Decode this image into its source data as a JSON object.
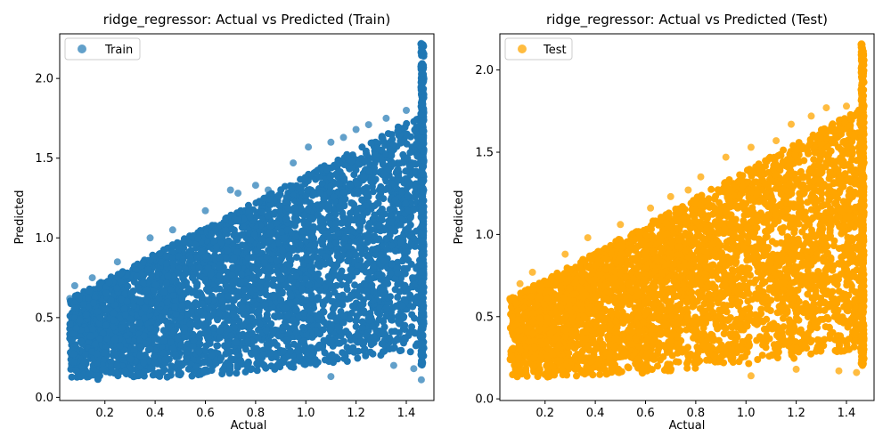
{
  "chart_data": [
    {
      "type": "scatter",
      "title": "ridge_regressor: Actual vs Predicted (Train)",
      "xlabel": "Actual",
      "ylabel": "Predicted",
      "xlim": [
        0.02,
        1.51
      ],
      "ylim": [
        -0.02,
        2.28
      ],
      "xticks": [
        0.2,
        0.4,
        0.6,
        0.8,
        1.0,
        1.2,
        1.4
      ],
      "xtick_labels": [
        "0.2",
        "0.4",
        "0.6",
        "0.8",
        "1.0",
        "1.2",
        "1.4"
      ],
      "yticks": [
        0.0,
        0.5,
        1.0,
        1.5,
        2.0
      ],
      "ytick_labels": [
        "0.0",
        "0.5",
        "1.0",
        "1.5",
        "2.0"
      ],
      "grid": false,
      "legend_position": "top-left",
      "series": [
        {
          "name": "Train",
          "color": "#1f77b4",
          "alpha": 0.7,
          "x_range": [
            0.06,
            1.47
          ],
          "y_min_range": [
            0.11,
            0.42
          ],
          "y_max_range": [
            0.62,
            2.22
          ],
          "points": [
            [
              0.06,
              0.62
            ],
            [
              0.08,
              0.7
            ],
            [
              0.15,
              0.75
            ],
            [
              0.25,
              0.85
            ],
            [
              0.38,
              1.0
            ],
            [
              0.47,
              1.05
            ],
            [
              0.6,
              1.17
            ],
            [
              0.7,
              1.3
            ],
            [
              0.73,
              1.28
            ],
            [
              0.8,
              1.33
            ],
            [
              0.85,
              1.3
            ],
            [
              0.95,
              1.47
            ],
            [
              1.01,
              1.57
            ],
            [
              1.1,
              1.6
            ],
            [
              1.15,
              1.63
            ],
            [
              1.2,
              1.68
            ],
            [
              1.25,
              1.71
            ],
            [
              1.32,
              1.75
            ],
            [
              1.4,
              1.8
            ],
            [
              1.46,
              2.22
            ],
            [
              1.43,
              0.18
            ],
            [
              1.46,
              0.11
            ],
            [
              1.1,
              0.13
            ],
            [
              1.35,
              0.2
            ]
          ]
        }
      ]
    },
    {
      "type": "scatter",
      "title": "ridge_regressor: Actual vs Predicted (Test)",
      "xlabel": "Actual",
      "ylabel": "Predicted",
      "xlim": [
        0.02,
        1.51
      ],
      "ylim": -1,
      "ylim_values": [
        -0.01,
        2.22
      ],
      "xticks": [
        0.2,
        0.4,
        0.6,
        0.8,
        1.0,
        1.2,
        1.4
      ],
      "xtick_labels": [
        "0.2",
        "0.4",
        "0.6",
        "0.8",
        "1.0",
        "1.2",
        "1.4"
      ],
      "yticks": [
        0.0,
        0.5,
        1.0,
        1.5,
        2.0
      ],
      "ytick_labels": [
        "0.0",
        "0.5",
        "1.0",
        "1.5",
        "2.0"
      ],
      "grid": false,
      "legend_position": "top-left",
      "series": [
        {
          "name": "Test",
          "color": "#ffa500",
          "alpha": 0.75,
          "x_range": [
            0.06,
            1.47
          ],
          "y_min_range": [
            0.13,
            0.43
          ],
          "y_max_range": [
            0.61,
            2.16
          ],
          "points": [
            [
              0.06,
              0.61
            ],
            [
              0.1,
              0.7
            ],
            [
              0.15,
              0.77
            ],
            [
              0.28,
              0.88
            ],
            [
              0.37,
              0.98
            ],
            [
              0.5,
              1.06
            ],
            [
              0.62,
              1.16
            ],
            [
              0.7,
              1.23
            ],
            [
              0.77,
              1.27
            ],
            [
              0.82,
              1.35
            ],
            [
              0.92,
              1.47
            ],
            [
              1.02,
              1.53
            ],
            [
              1.12,
              1.57
            ],
            [
              1.18,
              1.67
            ],
            [
              1.26,
              1.72
            ],
            [
              1.32,
              1.77
            ],
            [
              1.4,
              1.78
            ],
            [
              1.46,
              2.16
            ],
            [
              1.37,
              0.17
            ],
            [
              1.44,
              0.16
            ],
            [
              1.02,
              0.14
            ],
            [
              1.2,
              0.18
            ]
          ]
        }
      ]
    }
  ]
}
